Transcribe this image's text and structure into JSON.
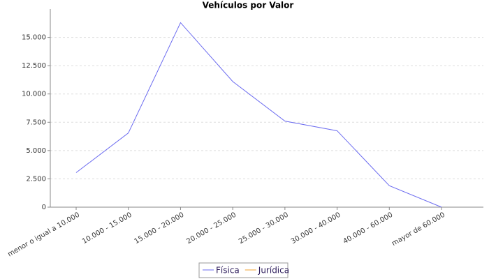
{
  "chart_data": {
    "type": "line",
    "title": "Vehículos por Valor",
    "categories": [
      "menor o igual a 10.000",
      "10.000 - 15.000",
      "15.000 - 20.000",
      "20.000 - 25.000",
      "25.000 - 30.000",
      "30.000 - 40.000",
      "40.000 - 60.000",
      "mayor de 60.000"
    ],
    "series": [
      {
        "name": "Física",
        "color": "#6b6bf0",
        "values": [
          3050,
          6550,
          16300,
          11100,
          7600,
          6750,
          1900,
          0
        ]
      },
      {
        "name": "Jurídica",
        "color": "#f0a030",
        "values": [
          null,
          null,
          null,
          null,
          null,
          null,
          null,
          null
        ]
      }
    ],
    "ylim": [
      0,
      17500
    ],
    "yticks": [
      0,
      {
        "value": 2500,
        "label": "2.500"
      },
      {
        "value": 5000,
        "label": "5.000"
      },
      {
        "value": 7500,
        "label": "7.500"
      },
      {
        "value": 10000,
        "label": "10.000"
      },
      {
        "value": 12500,
        "label": "12.500"
      },
      {
        "value": 15000,
        "label": "15.000"
      }
    ],
    "grid": true
  }
}
